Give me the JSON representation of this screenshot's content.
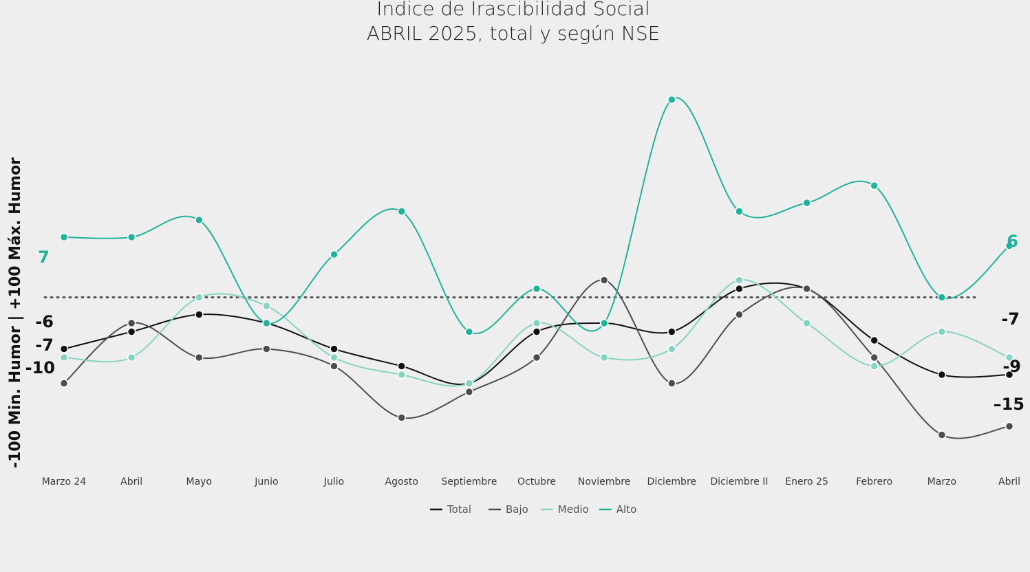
{
  "chart_data": {
    "type": "line",
    "title": "Indice de Irascibilidad Social",
    "subtitle": "ABRIL 2025, total y según NSE",
    "ylabel": "-100 Min. Humor | +100 Máx. Humor",
    "ylim": [
      -25,
      25
    ],
    "reference_line": 0,
    "legend_position": "bottom",
    "categories": [
      "Marzo 24",
      "Abril",
      "Mayo",
      "Junio",
      "Julio",
      "Agosto",
      "Septiembre",
      "Octubre",
      "Noviembre",
      "Diciembre",
      "Diciembre II",
      "Enero 25",
      "Febrero",
      "Marzo",
      "Abril"
    ],
    "series": [
      {
        "name": "Total",
        "color": "#111111",
        "values": [
          -6,
          -4,
          -2,
          -3,
          -6,
          -8,
          -10,
          -4,
          -3,
          -4,
          1,
          1,
          -5,
          -9,
          -9
        ],
        "start_label": "-6",
        "end_label": "-9"
      },
      {
        "name": "Bajo",
        "color": "#4d4d4d",
        "values": [
          -10,
          -3,
          -7,
          -6,
          -8,
          -14,
          -11,
          -7,
          2,
          -10,
          -2,
          1,
          -7,
          -16,
          -15
        ],
        "start_label": "-10",
        "end_label": "–15"
      },
      {
        "name": "Medio",
        "color": "#86d3c3",
        "values": [
          -7,
          -7,
          0,
          -1,
          -7,
          -9,
          -10,
          -3,
          -7,
          -6,
          2,
          -3,
          -8,
          -4,
          -7
        ],
        "start_label": "-7",
        "end_label": "-7"
      },
      {
        "name": "Alto",
        "color": "#20b29a",
        "values": [
          7,
          7,
          9,
          -3,
          5,
          10,
          -4,
          1,
          -3,
          23,
          10,
          11,
          13,
          0,
          6
        ],
        "start_label": "7",
        "end_label": "6"
      }
    ]
  }
}
